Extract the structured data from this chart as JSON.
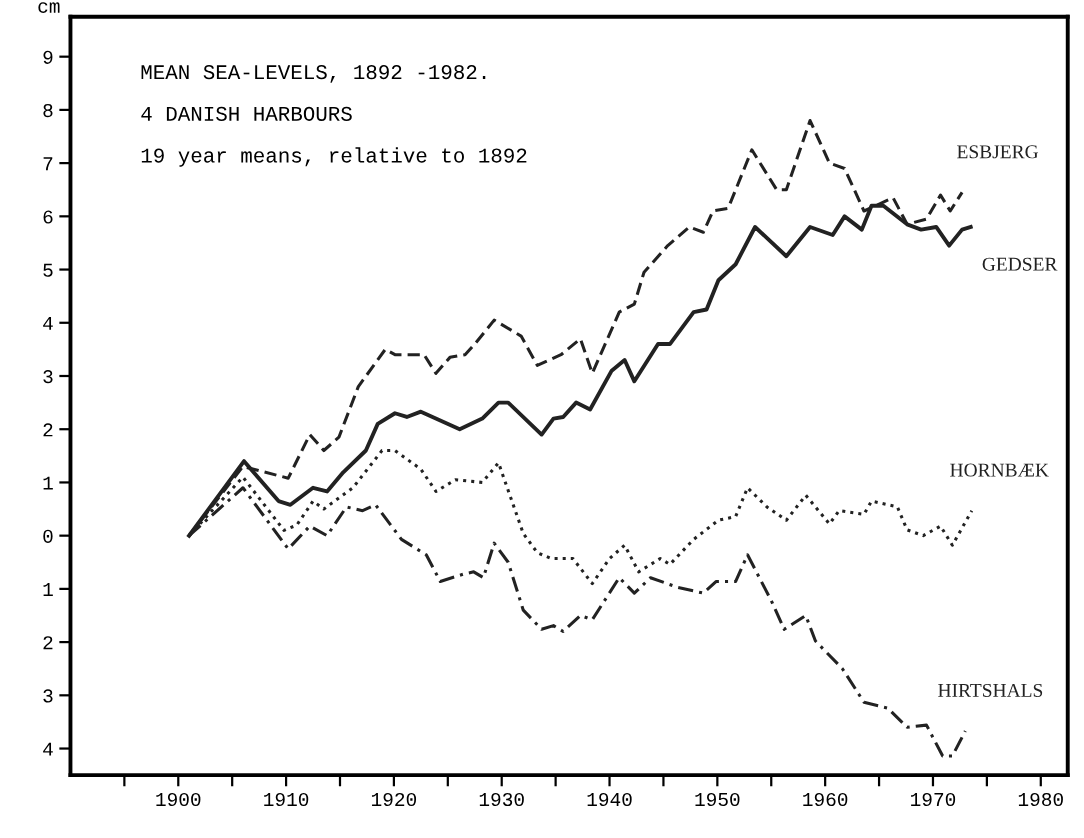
{
  "chart_data": {
    "type": "line",
    "title": "MEAN SEA-LEVELS, 1892 -1982.",
    "subtitle": "4 DANISH HARBOURS",
    "ylabel": "cm",
    "annotations": [
      "19 year means, relative to 1892"
    ],
    "xlim": [
      1890,
      1982.5
    ],
    "ylim": [
      -4.5,
      9.75
    ],
    "xticks": [
      {
        "value": 1895,
        "label": null
      },
      {
        "value": 1900,
        "label": "1900"
      },
      {
        "value": 1905,
        "label": null
      },
      {
        "value": 1910,
        "label": "1910"
      },
      {
        "value": 1915,
        "label": null
      },
      {
        "value": 1920,
        "label": "1920"
      },
      {
        "value": 1925,
        "label": null
      },
      {
        "value": 1930,
        "label": "1930"
      },
      {
        "value": 1935,
        "label": null
      },
      {
        "value": 1940,
        "label": "1940"
      },
      {
        "value": 1945,
        "label": null
      },
      {
        "value": 1950,
        "label": "1950"
      },
      {
        "value": 1955,
        "label": null
      },
      {
        "value": 1960,
        "label": "1960"
      },
      {
        "value": 1965,
        "label": null
      },
      {
        "value": 1970,
        "label": "1970"
      },
      {
        "value": 1975,
        "label": null
      },
      {
        "value": 1980,
        "label": "1980"
      }
    ],
    "yticks": [
      {
        "value": -4,
        "label": "4"
      },
      {
        "value": -3,
        "label": "3"
      },
      {
        "value": -2,
        "label": "2"
      },
      {
        "value": -1,
        "label": "1"
      },
      0,
      1,
      2,
      3,
      4,
      5,
      6,
      7,
      8,
      9
    ],
    "grid": false,
    "legend": false,
    "marker": "none",
    "series": [
      {
        "name": "ESBJERG",
        "color": "#222222",
        "line_style": "dashed",
        "x": [
          1901,
          1906,
          1910.2,
          1912.2,
          1913.5,
          1914.9,
          1916.7,
          1919.2,
          1920.1,
          1922.8,
          1923.9,
          1925.2,
          1926.6,
          1927.5,
          1929.3,
          1931.8,
          1933.3,
          1935.5,
          1937.3,
          1938.4,
          1940.9,
          1942.3,
          1943.2,
          1945.4,
          1947.4,
          1948.7,
          1949.6,
          1951,
          1953.2,
          1955.5,
          1956.4,
          1958.6,
          1960.4,
          1961.8,
          1963.6,
          1966.3,
          1967.6,
          1969.4,
          1970.7,
          1971.6,
          1972.7
        ],
        "values": [
          0,
          1.3,
          1.08,
          1.9,
          1.6,
          1.85,
          2.8,
          3.5,
          3.4,
          3.4,
          3.05,
          3.35,
          3.4,
          3.6,
          4.05,
          3.75,
          3.2,
          3.4,
          3.7,
          3.05,
          4.2,
          4.35,
          4.95,
          5.45,
          5.8,
          5.7,
          6.1,
          6.15,
          7.25,
          6.5,
          6.5,
          7.8,
          7.0,
          6.9,
          6.1,
          6.35,
          5.85,
          5.95,
          6.4,
          6.1,
          6.45
        ]
      },
      {
        "name": "GEDSER",
        "color": "#222222",
        "line_style": "solid",
        "x": [
          1901,
          1906.1,
          1909.3,
          1910.4,
          1912.5,
          1913.8,
          1915.3,
          1917.4,
          1918.5,
          1920.1,
          1921.2,
          1922.5,
          1926.1,
          1928.2,
          1929.7,
          1930.6,
          1933.7,
          1934.8,
          1935.7,
          1936.9,
          1938.2,
          1940.2,
          1941.4,
          1942.3,
          1944.5,
          1945.6,
          1947.8,
          1949,
          1950.1,
          1951.7,
          1953.5,
          1956.4,
          1958.6,
          1960.7,
          1961.8,
          1963.4,
          1964.3,
          1965.4,
          1967.6,
          1968.9,
          1970.3,
          1971.5,
          1972.7,
          1973.5
        ],
        "values": [
          0,
          1.4,
          0.65,
          0.58,
          0.9,
          0.83,
          1.19,
          1.6,
          2.1,
          2.3,
          2.23,
          2.33,
          2.0,
          2.2,
          2.5,
          2.5,
          1.9,
          2.2,
          2.23,
          2.5,
          2.37,
          3.1,
          3.3,
          2.9,
          3.6,
          3.6,
          4.2,
          4.25,
          4.8,
          5.1,
          5.8,
          5.25,
          5.8,
          5.65,
          6.0,
          5.75,
          6.2,
          6.2,
          5.85,
          5.75,
          5.8,
          5.45,
          5.75,
          5.8
        ]
      },
      {
        "name": "HORNBÆK",
        "color": "#222222",
        "line_style": "dotted",
        "x": [
          1901,
          1906,
          1909.8,
          1911,
          1912.5,
          1913.5,
          1916.2,
          1918.9,
          1920.1,
          1922.5,
          1923.9,
          1925.7,
          1928.2,
          1929.7,
          1932,
          1933.3,
          1934.6,
          1936.6,
          1938.4,
          1940,
          1941.4,
          1942.7,
          1944.7,
          1945.6,
          1947.8,
          1950.1,
          1951.7,
          1952.8,
          1954.6,
          1956.4,
          1958.2,
          1960.4,
          1961.3,
          1963.6,
          1964.3,
          1966.7,
          1967.6,
          1969.1,
          1970.7,
          1971.8,
          1973.6
        ],
        "values": [
          0,
          1.1,
          0.1,
          0.2,
          0.65,
          0.5,
          0.9,
          1.6,
          1.6,
          1.25,
          0.83,
          1.05,
          1.0,
          1.37,
          0.04,
          -0.32,
          -0.43,
          -0.43,
          -0.9,
          -0.43,
          -0.18,
          -0.68,
          -0.43,
          -0.54,
          -0.07,
          0.29,
          0.36,
          0.9,
          0.54,
          0.29,
          0.76,
          0.22,
          0.47,
          0.4,
          0.65,
          0.54,
          0.11,
          0,
          0.18,
          -0.18,
          0.47
        ]
      },
      {
        "name": "HIRTSHALS",
        "color": "#222222",
        "line_style": "dashdot",
        "x": [
          1901,
          1906,
          1910.2,
          1912.2,
          1913.8,
          1915.6,
          1917.1,
          1918.3,
          1920.7,
          1923,
          1924.3,
          1926.5,
          1927.4,
          1928.3,
          1929.3,
          1930.6,
          1932,
          1933.7,
          1934.8,
          1935.7,
          1937.3,
          1938.4,
          1940.9,
          1942.3,
          1943.8,
          1946.3,
          1948.7,
          1949.9,
          1951.7,
          1952.8,
          1955,
          1956.2,
          1958.2,
          1959.1,
          1961.6,
          1963.6,
          1965.8,
          1967.6,
          1969.4,
          1970.9,
          1971.8,
          1973
        ],
        "values": [
          0,
          0.9,
          -0.25,
          0.18,
          0,
          0.54,
          0.47,
          0.58,
          -0.07,
          -0.36,
          -0.86,
          -0.72,
          -0.68,
          -0.79,
          -0.14,
          -0.5,
          -1.4,
          -1.76,
          -1.69,
          -1.8,
          -1.5,
          -1.58,
          -0.79,
          -1.08,
          -0.79,
          -0.97,
          -1.08,
          -0.86,
          -0.86,
          -0.36,
          -1.22,
          -1.76,
          -1.5,
          -1.98,
          -2.5,
          -3.13,
          -3.24,
          -3.6,
          -3.56,
          -4.14,
          -4.14,
          -3.67
        ]
      }
    ]
  }
}
